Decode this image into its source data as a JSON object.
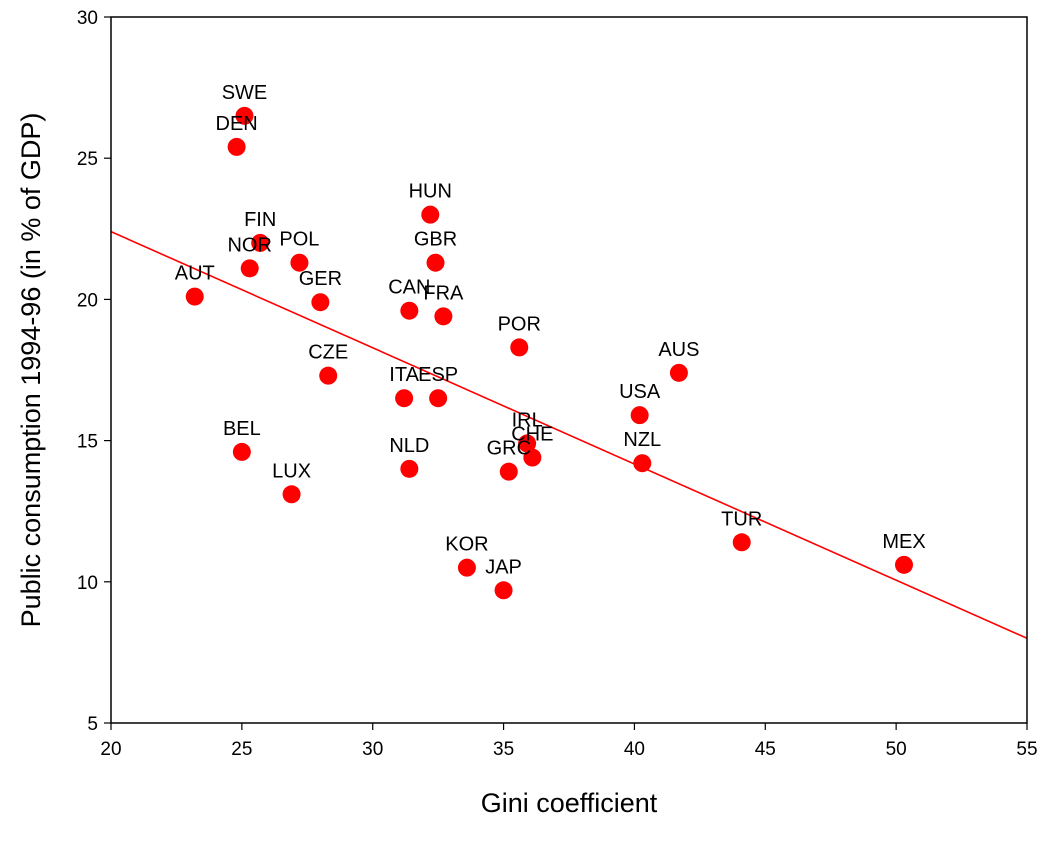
{
  "chart_data": {
    "type": "scatter",
    "title": "",
    "xlabel": "Gini coefficient",
    "ylabel": "Public consumption 1994-96 (in % of GDP)",
    "xlim": [
      20,
      55
    ],
    "ylim": [
      5,
      30
    ],
    "xticks": [
      20,
      25,
      30,
      35,
      40,
      45,
      50,
      55
    ],
    "yticks": [
      5,
      10,
      15,
      20,
      25,
      30
    ],
    "grid": false,
    "colors": {
      "points": "#ff0000",
      "fit_line": "#ff0000",
      "axes": "#000000"
    },
    "points": [
      {
        "label": "SWE",
        "x": 25.1,
        "y": 26.5
      },
      {
        "label": "DEN",
        "x": 24.8,
        "y": 25.4
      },
      {
        "label": "FIN",
        "x": 25.7,
        "y": 22.0
      },
      {
        "label": "NOR",
        "x": 25.3,
        "y": 21.1
      },
      {
        "label": "POL",
        "x": 27.2,
        "y": 21.3
      },
      {
        "label": "AUT",
        "x": 23.2,
        "y": 20.1
      },
      {
        "label": "GER",
        "x": 28.0,
        "y": 19.9
      },
      {
        "label": "HUN",
        "x": 32.2,
        "y": 23.0
      },
      {
        "label": "GBR",
        "x": 32.4,
        "y": 21.3
      },
      {
        "label": "CAN",
        "x": 31.4,
        "y": 19.6
      },
      {
        "label": "FRA",
        "x": 32.7,
        "y": 19.4
      },
      {
        "label": "POR",
        "x": 35.6,
        "y": 18.3
      },
      {
        "label": "AUS",
        "x": 41.7,
        "y": 17.4
      },
      {
        "label": "CZE",
        "x": 28.3,
        "y": 17.3
      },
      {
        "label": "ITA",
        "x": 31.2,
        "y": 16.5
      },
      {
        "label": "ESP",
        "x": 32.5,
        "y": 16.5
      },
      {
        "label": "USA",
        "x": 40.2,
        "y": 15.9
      },
      {
        "label": "IRL",
        "x": 35.9,
        "y": 14.9
      },
      {
        "label": "CHE",
        "x": 36.1,
        "y": 14.4
      },
      {
        "label": "BEL",
        "x": 25.0,
        "y": 14.6
      },
      {
        "label": "NZL",
        "x": 40.3,
        "y": 14.2
      },
      {
        "label": "NLD",
        "x": 31.4,
        "y": 14.0
      },
      {
        "label": "GRC",
        "x": 35.2,
        "y": 13.9
      },
      {
        "label": "LUX",
        "x": 26.9,
        "y": 13.1
      },
      {
        "label": "TUR",
        "x": 44.1,
        "y": 11.4
      },
      {
        "label": "MEX",
        "x": 50.3,
        "y": 10.6
      },
      {
        "label": "KOR",
        "x": 33.6,
        "y": 10.5
      },
      {
        "label": "JAP",
        "x": 35.0,
        "y": 9.7
      }
    ],
    "fit_line": {
      "x": [
        20,
        55
      ],
      "y": [
        22.4,
        8.0
      ]
    }
  }
}
